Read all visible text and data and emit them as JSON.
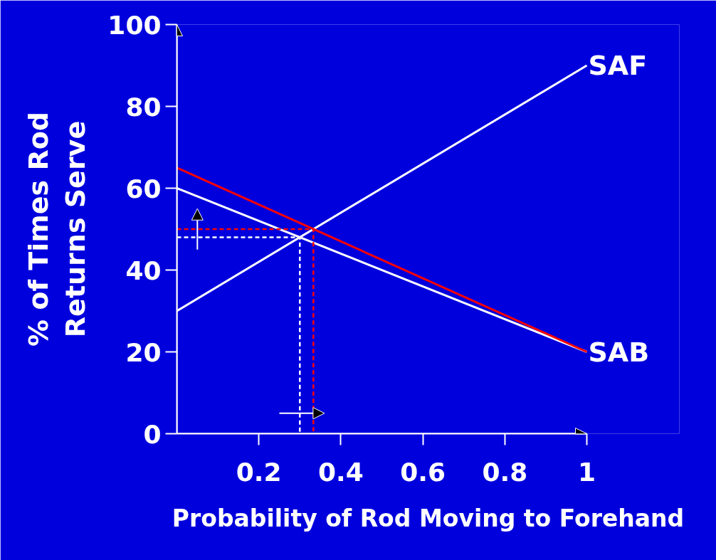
{
  "chart_data": {
    "type": "line",
    "xlabel": "Probability of Rod Moving to Forehand",
    "ylabel": "% of Times Rod Returns Serve",
    "series": [
      {
        "name": "SAF",
        "color": "#ffffff",
        "x": [
          0,
          1
        ],
        "values": [
          30,
          90
        ]
      },
      {
        "name": "SAB",
        "color": "#ffffff",
        "x": [
          0,
          1
        ],
        "values": [
          60,
          20
        ]
      },
      {
        "color": "#ff0000",
        "x": [
          0,
          1
        ],
        "values": [
          65,
          20
        ]
      },
      {
        "color": "#ffffff",
        "x": [
          0,
          0.3,
          0.3
        ],
        "values": [
          48,
          48,
          0
        ],
        "line_style": "dashed"
      },
      {
        "color": "#ff0000",
        "x": [
          0,
          0.333,
          0.333
        ],
        "values": [
          50,
          50,
          0
        ],
        "line_style": "dashed"
      }
    ],
    "xlim": [
      0,
      1
    ],
    "ylim": [
      0,
      100
    ],
    "xticks": [
      0.2,
      0.4,
      0.6,
      0.8,
      1
    ],
    "yticks": [
      0,
      20,
      40,
      60,
      80,
      100
    ],
    "grid": false,
    "marker": "none",
    "line_style": "solid"
  }
}
